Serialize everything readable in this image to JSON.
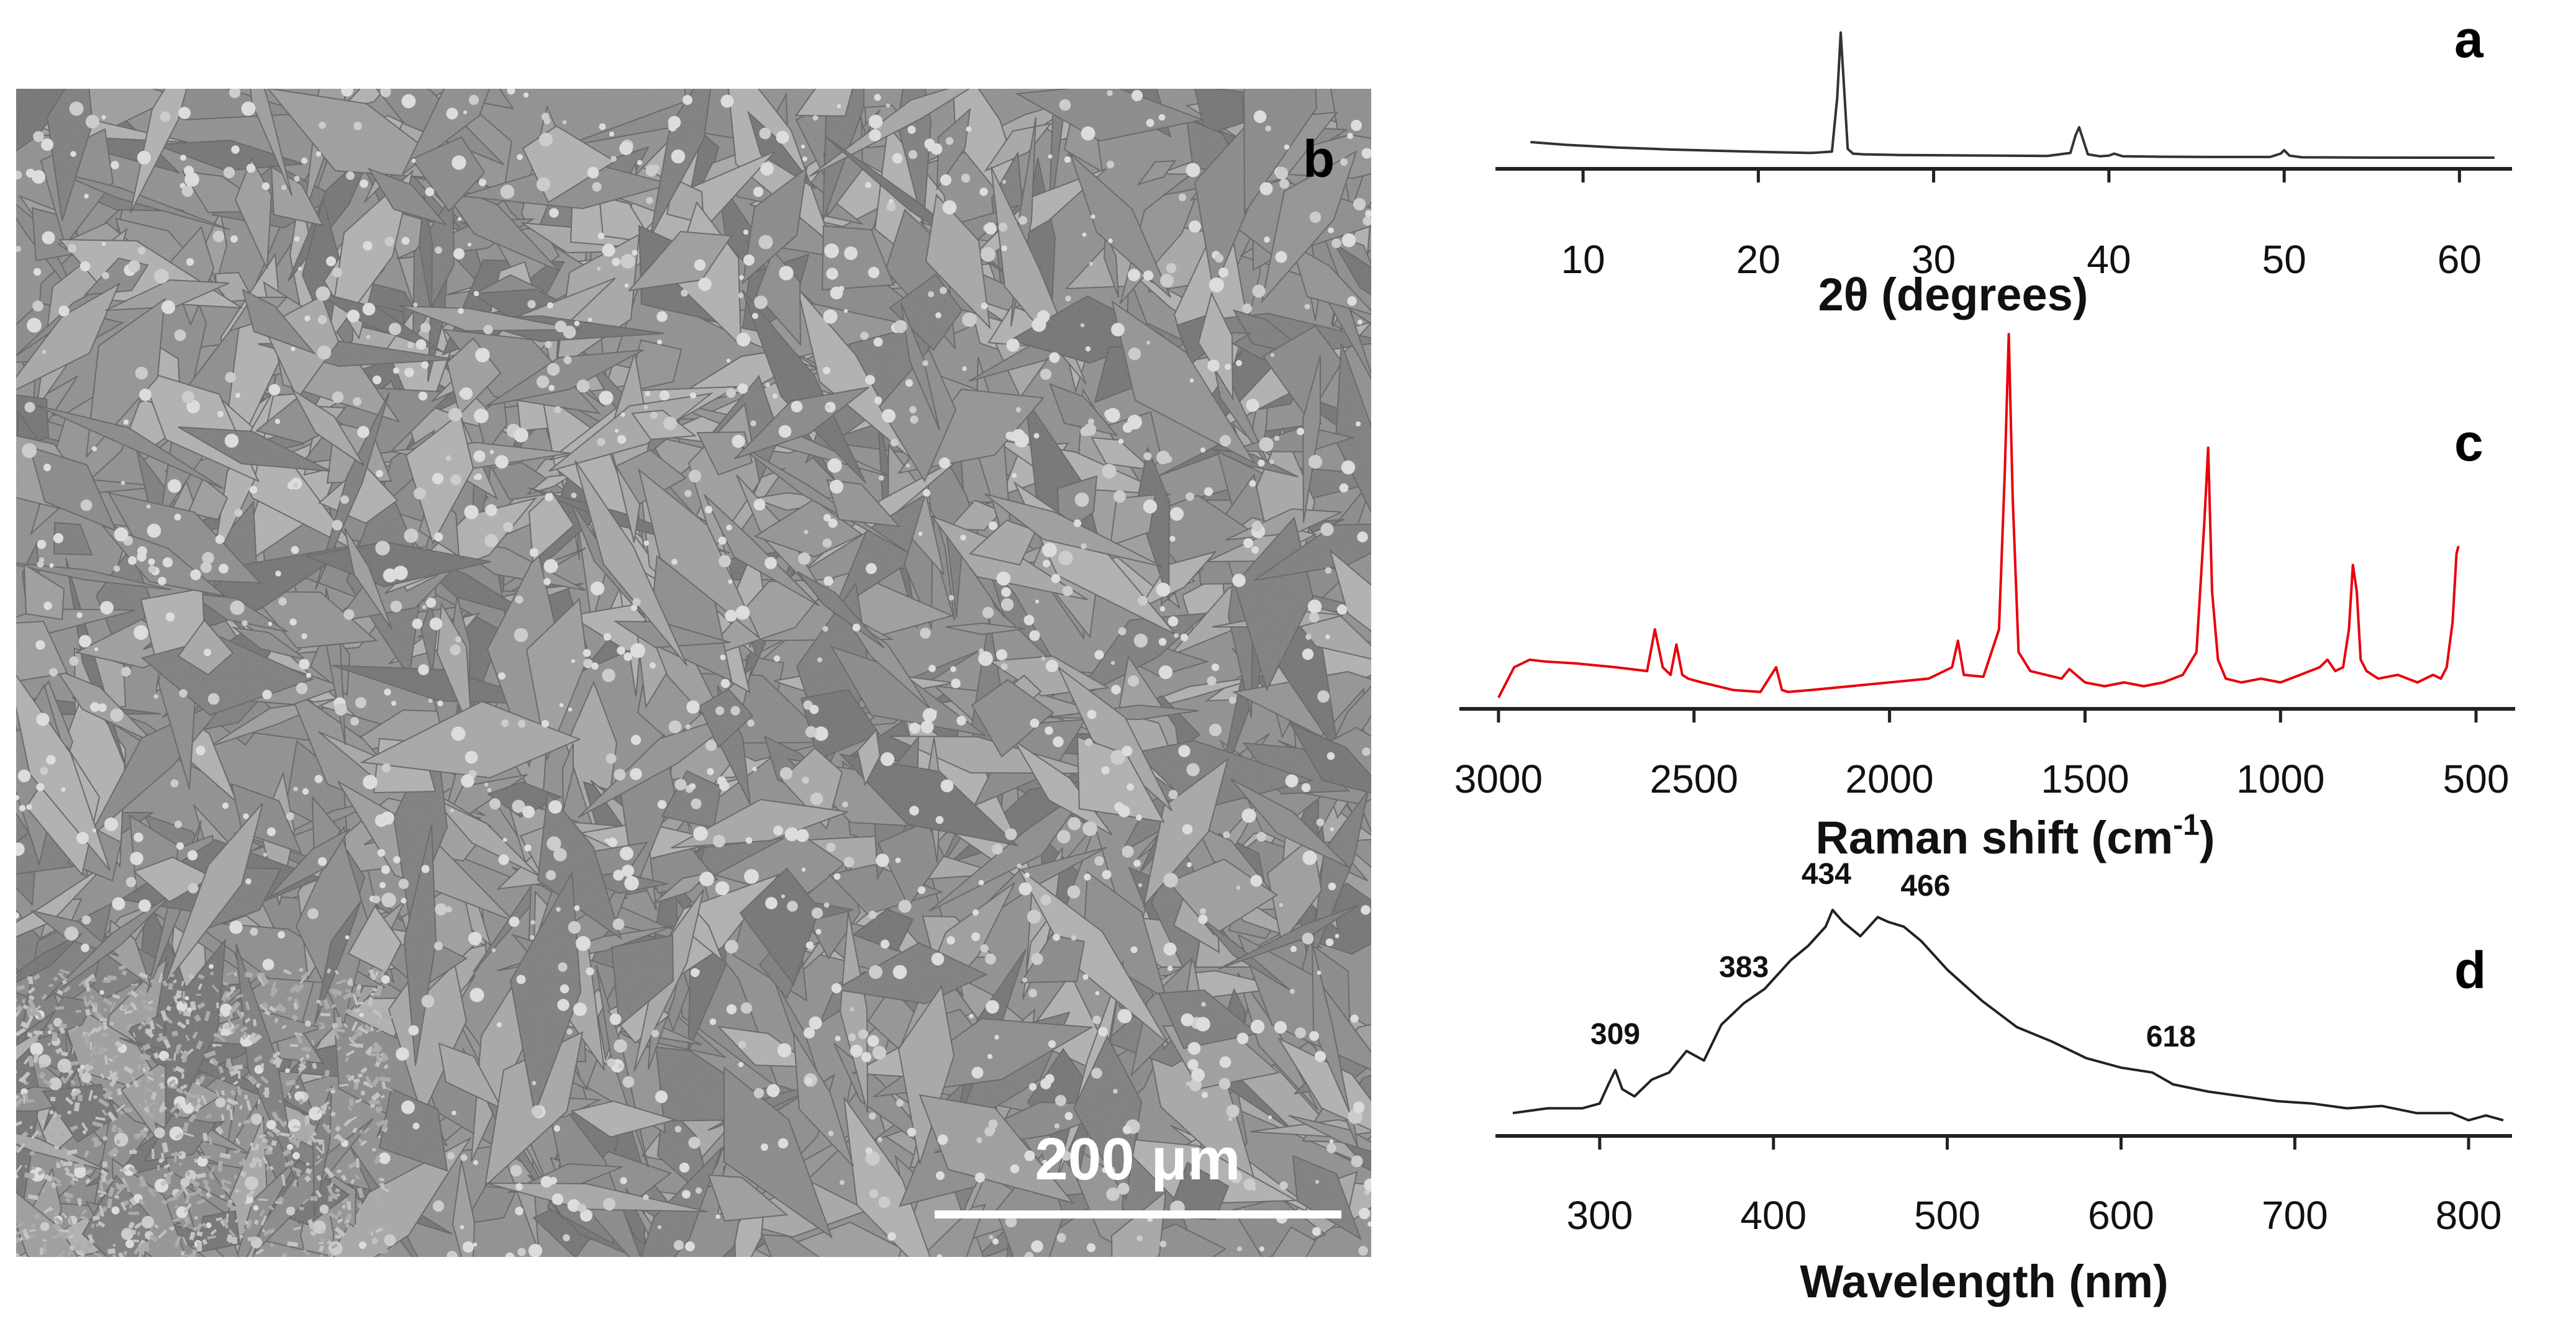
{
  "figure": {
    "panels": [
      {
        "id": "a",
        "letter": "a"
      },
      {
        "id": "b",
        "letter": "b"
      },
      {
        "id": "c",
        "letter": "c"
      },
      {
        "id": "d",
        "letter": "d"
      }
    ],
    "sem_image": {
      "scale_bar_label": "200 μm",
      "colors": {
        "background": "#8d8d8d",
        "crystal_light": "#b8b8b8",
        "crystal_dark": "#6e6e6e",
        "scale_bar": "#ffffff"
      }
    }
  },
  "chart_data": [
    {
      "panel": "a",
      "type": "line",
      "xlabel": "2θ (degrees)",
      "ylabel": "",
      "xlim": [
        5,
        63
      ],
      "ylim": [
        0,
        1
      ],
      "xticks": [
        10,
        20,
        30,
        40,
        50,
        60
      ],
      "grid": false,
      "series": [
        {
          "color": "#333333",
          "x": [
            7,
            9,
            12,
            15,
            18,
            21,
            23,
            24.2,
            24.5,
            24.7,
            24.9,
            25.1,
            25.4,
            26,
            28,
            31,
            34,
            36.5,
            37.8,
            38.1,
            38.3,
            38.5,
            38.8,
            39.5,
            40,
            40.3,
            40.8,
            43,
            46,
            49.2,
            49.8,
            50,
            50.3,
            51,
            54,
            58,
            62
          ],
          "y": [
            0.17,
            0.15,
            0.13,
            0.115,
            0.105,
            0.095,
            0.09,
            0.1,
            0.5,
            0.98,
            0.55,
            0.12,
            0.085,
            0.08,
            0.075,
            0.072,
            0.07,
            0.068,
            0.09,
            0.22,
            0.28,
            0.2,
            0.08,
            0.065,
            0.07,
            0.085,
            0.065,
            0.062,
            0.06,
            0.06,
            0.085,
            0.11,
            0.07,
            0.058,
            0.056,
            0.055,
            0.055
          ]
        }
      ]
    },
    {
      "panel": "c",
      "type": "line",
      "xlabel": "Raman shift (cm-1)",
      "xlabel_base": "Raman shift (cm",
      "xlabel_sup": "-1",
      "xlabel_end": ")",
      "ylabel": "",
      "xlim": [
        3100,
        400
      ],
      "ylim": [
        0,
        1
      ],
      "xticks": [
        3000,
        2500,
        2000,
        1500,
        1000,
        500
      ],
      "grid": false,
      "series": [
        {
          "color": "#e8000b",
          "x": [
            3000,
            2960,
            2920,
            2880,
            2800,
            2700,
            2620,
            2600,
            2580,
            2560,
            2545,
            2530,
            2515,
            2480,
            2400,
            2330,
            2290,
            2275,
            2260,
            2200,
            2100,
            2000,
            1900,
            1840,
            1825,
            1810,
            1760,
            1720,
            1705,
            1695,
            1685,
            1670,
            1640,
            1600,
            1560,
            1540,
            1500,
            1450,
            1400,
            1350,
            1300,
            1250,
            1215,
            1195,
            1185,
            1175,
            1160,
            1140,
            1100,
            1050,
            1000,
            950,
            900,
            880,
            860,
            840,
            825,
            815,
            805,
            795,
            780,
            750,
            700,
            650,
            610,
            590,
            575,
            560,
            550,
            545
          ],
          "y": [
            0.02,
            0.1,
            0.12,
            0.115,
            0.11,
            0.1,
            0.09,
            0.2,
            0.1,
            0.08,
            0.16,
            0.08,
            0.07,
            0.06,
            0.04,
            0.035,
            0.1,
            0.04,
            0.035,
            0.04,
            0.05,
            0.06,
            0.07,
            0.1,
            0.17,
            0.08,
            0.075,
            0.2,
            0.62,
            0.98,
            0.55,
            0.14,
            0.09,
            0.08,
            0.07,
            0.095,
            0.06,
            0.05,
            0.06,
            0.05,
            0.06,
            0.08,
            0.14,
            0.48,
            0.68,
            0.3,
            0.12,
            0.07,
            0.06,
            0.07,
            0.06,
            0.08,
            0.1,
            0.12,
            0.09,
            0.1,
            0.2,
            0.37,
            0.3,
            0.12,
            0.09,
            0.07,
            0.08,
            0.06,
            0.08,
            0.07,
            0.1,
            0.22,
            0.4,
            0.42
          ]
        }
      ]
    },
    {
      "panel": "d",
      "type": "line",
      "xlabel": "Wavelength (nm)",
      "ylabel": "",
      "xlim": [
        240,
        825
      ],
      "ylim": [
        0,
        1
      ],
      "xticks": [
        300,
        400,
        500,
        600,
        700,
        800
      ],
      "grid": false,
      "annotations": [
        {
          "text": "309",
          "x": 309
        },
        {
          "text": "383",
          "x": 383
        },
        {
          "text": "434",
          "x": 434
        },
        {
          "text": "466",
          "x": 466
        },
        {
          "text": "618",
          "x": 618
        }
      ],
      "series": [
        {
          "color": "#222222",
          "x": [
            250,
            270,
            290,
            300,
            305,
            309,
            313,
            320,
            330,
            340,
            350,
            360,
            370,
            383,
            395,
            410,
            420,
            430,
            434,
            440,
            450,
            460,
            466,
            475,
            485,
            500,
            520,
            540,
            560,
            580,
            600,
            618,
            630,
            650,
            670,
            690,
            710,
            730,
            750,
            770,
            790,
            800,
            810,
            820
          ],
          "y": [
            0.08,
            0.1,
            0.1,
            0.12,
            0.2,
            0.26,
            0.18,
            0.15,
            0.22,
            0.25,
            0.34,
            0.3,
            0.45,
            0.54,
            0.6,
            0.72,
            0.78,
            0.86,
            0.93,
            0.88,
            0.82,
            0.9,
            0.88,
            0.86,
            0.8,
            0.68,
            0.55,
            0.44,
            0.38,
            0.31,
            0.27,
            0.25,
            0.2,
            0.17,
            0.15,
            0.13,
            0.12,
            0.1,
            0.11,
            0.08,
            0.08,
            0.05,
            0.07,
            0.05
          ]
        }
      ]
    }
  ]
}
